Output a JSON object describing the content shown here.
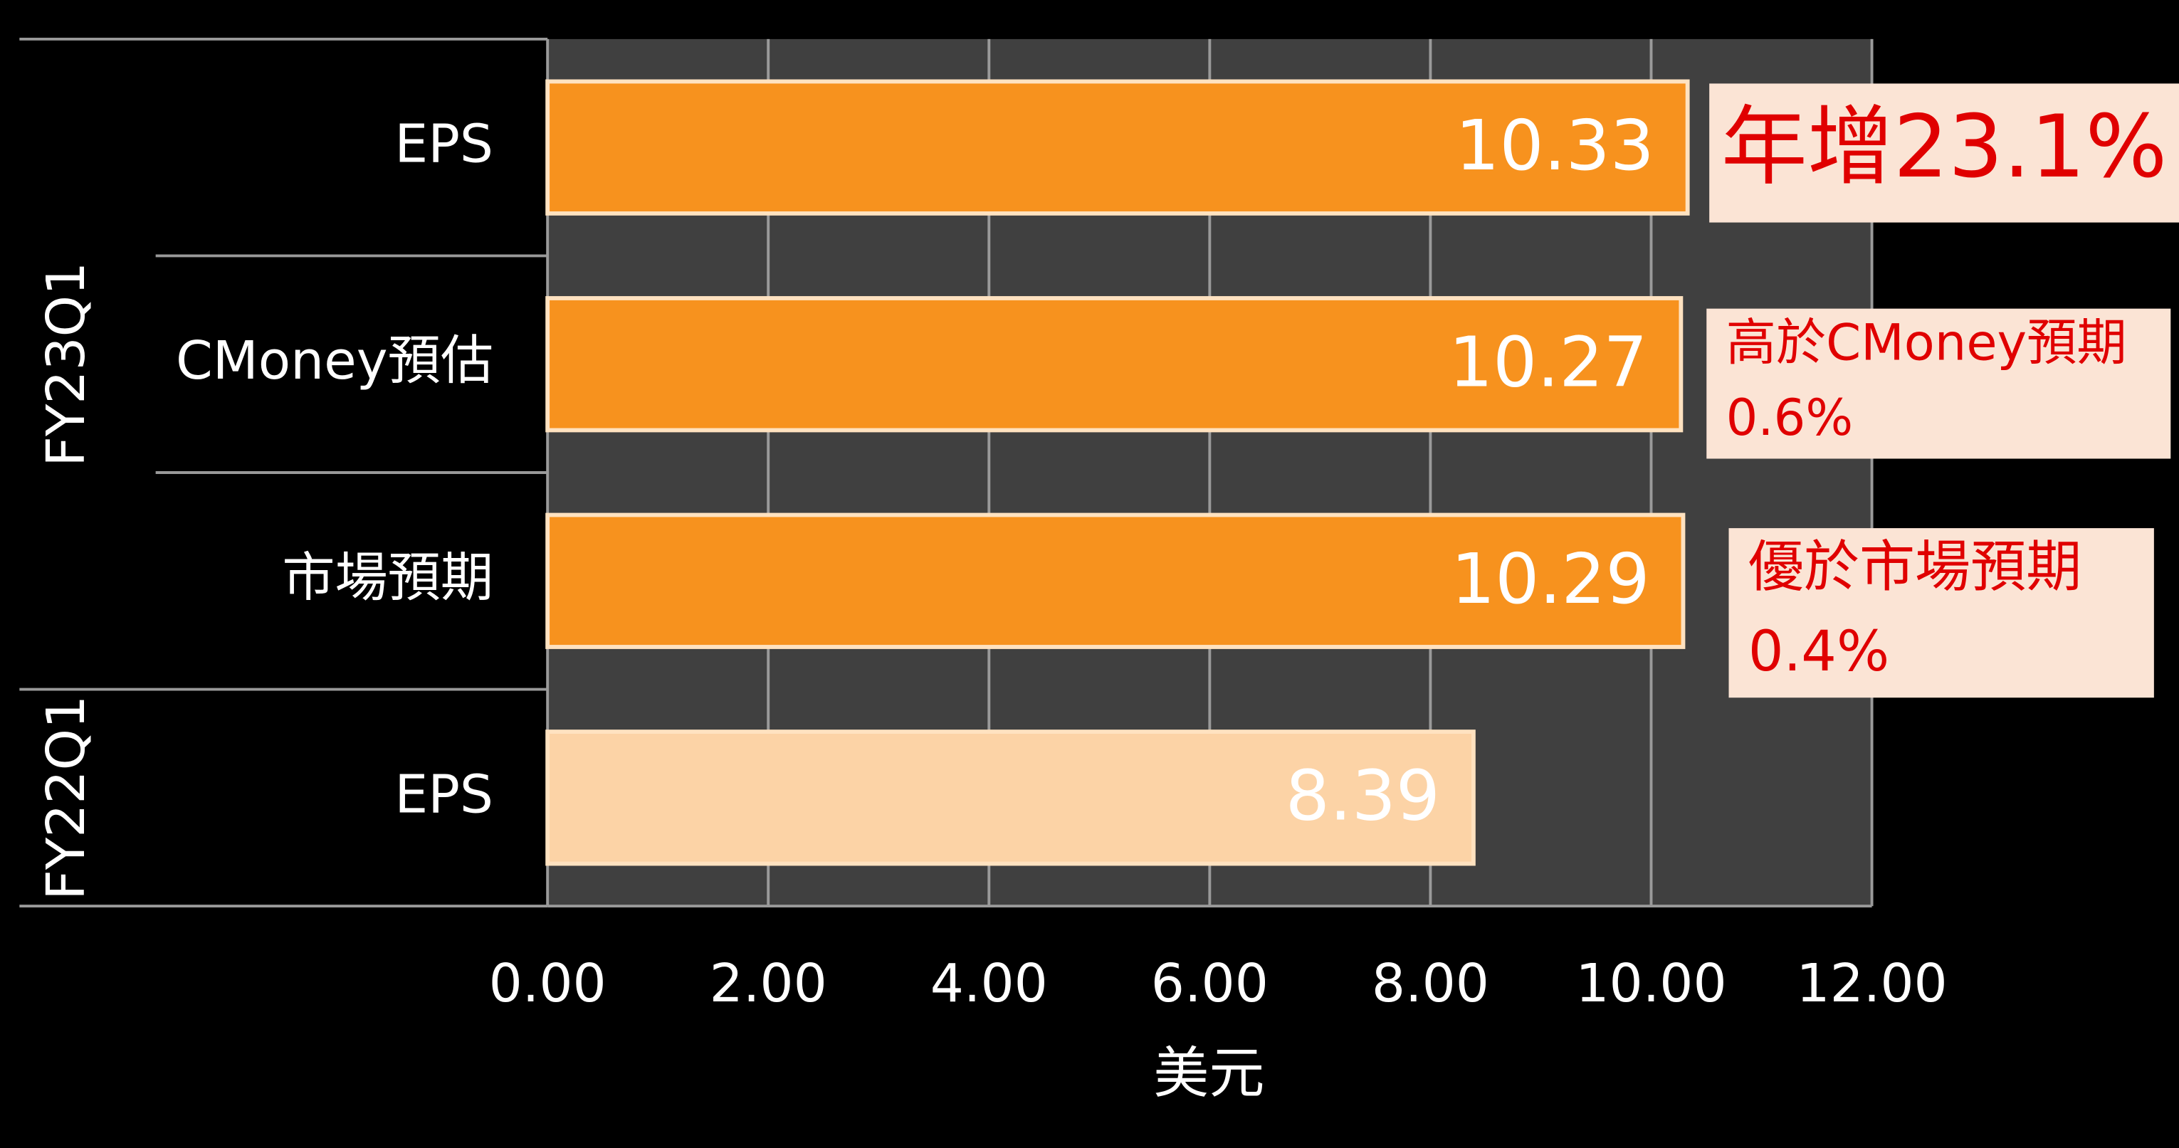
{
  "chart_data": {
    "type": "bar",
    "orientation": "horizontal",
    "x_label": "美元",
    "groups": [
      {
        "name": "FY23Q1",
        "categories": [
          "EPS",
          "CMoney預估",
          "市場預期"
        ]
      },
      {
        "name": "FY22Q1",
        "categories": [
          "EPS"
        ]
      }
    ],
    "values": [
      10.33,
      10.27,
      10.29,
      8.39
    ],
    "colors": [
      "#f7921e",
      "#f7921e",
      "#f7921e",
      "#fcd3a6"
    ],
    "xlim": [
      0,
      12
    ],
    "xticks": [
      {
        "value": 0,
        "label": "0.00"
      },
      {
        "value": 2,
        "label": "2.00"
      },
      {
        "value": 4,
        "label": "4.00"
      },
      {
        "value": 6,
        "label": "6.00"
      },
      {
        "value": 8,
        "label": "8.00"
      },
      {
        "value": 10,
        "label": "10.00"
      },
      {
        "value": 12,
        "label": "12.00"
      }
    ],
    "grid": true,
    "annotations": [
      [
        "年增23.1%"
      ],
      [
        "高於CMoney預期",
        "0.6%"
      ],
      [
        "優於市場預期",
        "0.4%"
      ]
    ]
  }
}
